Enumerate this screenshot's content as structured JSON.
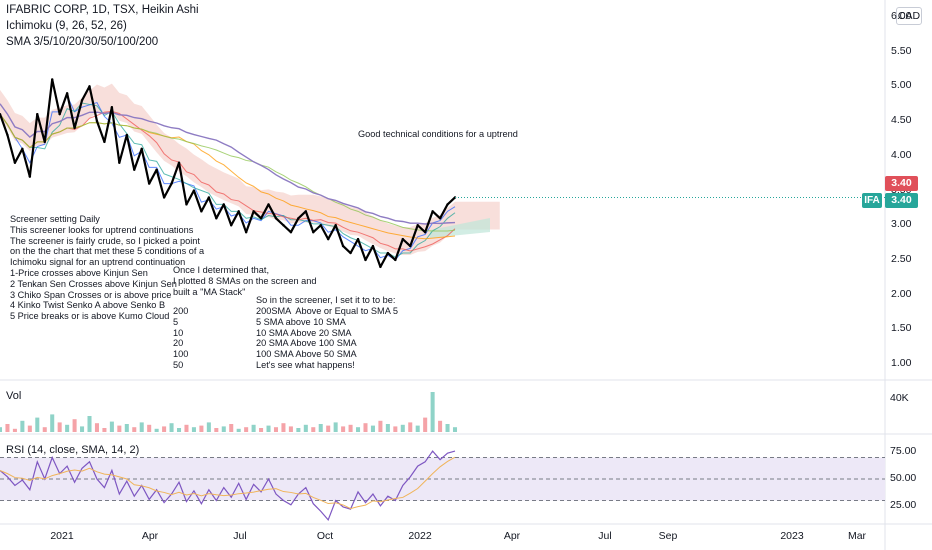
{
  "header": {
    "title": "IFABRIC CORP, 1D, TSX, Heikin Ashi",
    "indicator1": "Ichimoku (9, 26, 52, 26)",
    "indicator2": "SMA 3/5/10/20/30/50/100/200"
  },
  "currency_button": "CAD",
  "price_axis": {
    "ticks": [
      "6.00",
      "5.50",
      "5.00",
      "4.50",
      "4.00",
      "3.50",
      "3.00",
      "2.50",
      "2.00",
      "1.50",
      "1.00"
    ]
  },
  "last_price": {
    "symbol": "IFA",
    "value": "3.40",
    "badge": "3.40"
  },
  "volume_pane": {
    "label": "Vol",
    "tick": "40K"
  },
  "rsi_pane": {
    "label": "RSI (14, close, SMA, 14, 2)",
    "ticks": [
      "75.00",
      "50.00",
      "25.00"
    ]
  },
  "time_axis": {
    "ticks": [
      "2021",
      "Apr",
      "Jul",
      "Oct",
      "2022",
      "Apr",
      "Jul",
      "Sep",
      "2023",
      "Mar"
    ]
  },
  "annotations": {
    "top_note": "Good technical conditions for a uptrend",
    "screener_note": "Screener setting Daily\nThis screener looks for uptrend continuations\nThe screener is fairly crude, so I picked a point\non the the chart that met these 5 conditions of a\nIchimoku signal for an uptrend continuation\n1-Price crosses above Kinjun Sen\n2 Tenkan Sen Crosses above Kinjun Sen\n3 Chiko Span Crosses or is above price\n4 Kinko Twist Senko A above Senko B\n5 Price breaks or is above Kumo Cloud",
    "sma_note": "Once I determined that,\nI plotted 8 SMAs on the screen and\nbuilt a \"MA Stack\"",
    "settings_title": "So in the screener, I set it to to be:",
    "settings_left": "200\n5\n10\n20\n100\n50",
    "settings_right": "200SMA  Above or Equal to SMA 5\n5 SMA above 10 SMA\n10 SMA Above 20 SMA\n20 SMA Above 100 SMA\n100 SMA Above 50 SMA\nLet's see what happens!"
  },
  "colors": {
    "price_line": "#000000",
    "sma_long": "#8e7cc3",
    "cloud_bull": "#f3c9c3",
    "cloud_bear": "#bfe6d8",
    "rsi_line": "#7e57c2",
    "rsi_sma": "#f0b45a",
    "rsi_band": "#ede8f7",
    "badge_red": "#e0505a",
    "badge_teal": "#26a69a"
  },
  "chart_data": {
    "type": "line",
    "title": "IFABRIC CORP, 1D, TSX, Heikin Ashi",
    "ylim": [
      0.8,
      6.1
    ],
    "x_labels": [
      "2021",
      "Apr",
      "Jul",
      "Oct",
      "2022"
    ],
    "series": [
      {
        "values": [
          4.6,
          4.3,
          3.9,
          4.1,
          3.7,
          4.6,
          4.2,
          5.1,
          4.6,
          4.9,
          4.4,
          4.8,
          5.0,
          4.5,
          4.2,
          4.7,
          3.9,
          4.3,
          3.8,
          4.1,
          3.6,
          3.8,
          3.4,
          3.6,
          3.9,
          3.3,
          3.5,
          3.2,
          3.4,
          3.1,
          3.3,
          3.0,
          3.2,
          2.9,
          3.2,
          3.1,
          3.3,
          3.1,
          3.0,
          2.9,
          3.1,
          3.2,
          2.9,
          3.0,
          2.8,
          3.0,
          2.7,
          2.6,
          2.8,
          2.5,
          2.7,
          2.4,
          2.6,
          2.5,
          2.8,
          2.7,
          3.0,
          2.9,
          3.2,
          3.1,
          3.3,
          3.4
        ]
      }
    ],
    "volume": [
      6,
      10,
      4,
      14,
      8,
      18,
      6,
      22,
      12,
      9,
      16,
      7,
      20,
      11,
      5,
      13,
      8,
      10,
      6,
      12,
      9,
      4,
      7,
      11,
      5,
      9,
      6,
      8,
      12,
      5,
      7,
      10,
      4,
      6,
      9,
      5,
      8,
      6,
      11,
      7,
      5,
      9,
      6,
      10,
      8,
      12,
      7,
      9,
      6,
      11,
      8,
      14,
      10,
      7,
      9,
      12,
      8,
      18,
      50,
      14,
      10,
      6
    ],
    "rsi": [
      58,
      52,
      44,
      49,
      40,
      66,
      50,
      70,
      55,
      62,
      47,
      60,
      66,
      50,
      42,
      58,
      36,
      48,
      34,
      44,
      31,
      40,
      28,
      36,
      47,
      29,
      39,
      27,
      40,
      30,
      42,
      33,
      46,
      31,
      45,
      38,
      50,
      36,
      30,
      26,
      36,
      42,
      27,
      20,
      12,
      30,
      24,
      22,
      38,
      28,
      36,
      25,
      34,
      30,
      44,
      52,
      62,
      66,
      76,
      68,
      74,
      76
    ],
    "rsi_ylim": [
      10,
      90
    ],
    "rsi_levels": [
      70,
      50,
      30
    ]
  }
}
